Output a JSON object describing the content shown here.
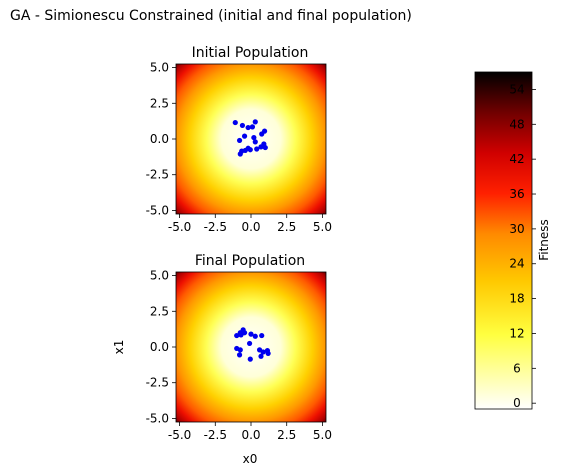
{
  "figure": {
    "title": "GA - Simionescu Constrained (initial and final population)"
  },
  "chart_data": [
    {
      "type": "scatter",
      "title": "Initial Population",
      "xlabel": "",
      "ylabel": "",
      "xlim": [
        -5.25,
        5.25
      ],
      "ylim": [
        -5.25,
        5.25
      ],
      "xticks": [
        "-5.0",
        "-2.5",
        "0.0",
        "2.5",
        "5.0"
      ],
      "yticks": [
        "-5.0",
        "-2.5",
        "0.0",
        "2.5",
        "5.0"
      ],
      "point_color": "#0000ee",
      "background": "fitness heatmap (x0^2 + x1^2)",
      "points": [
        [
          -1.1,
          1.15
        ],
        [
          0.3,
          1.2
        ],
        [
          -0.6,
          0.95
        ],
        [
          -0.2,
          0.8
        ],
        [
          0.1,
          0.85
        ],
        [
          0.95,
          0.55
        ],
        [
          0.75,
          0.35
        ],
        [
          -0.45,
          0.2
        ],
        [
          0.2,
          0.1
        ],
        [
          -0.8,
          -0.1
        ],
        [
          0.3,
          -0.2
        ],
        [
          0.9,
          -0.35
        ],
        [
          1.0,
          -0.6
        ],
        [
          0.7,
          -0.55
        ],
        [
          0.4,
          -0.7
        ],
        [
          -0.2,
          -0.65
        ],
        [
          -0.05,
          -0.75
        ],
        [
          -0.4,
          -0.8
        ],
        [
          -0.65,
          -0.85
        ],
        [
          -0.75,
          -1.05
        ]
      ]
    },
    {
      "type": "scatter",
      "title": "Final Population",
      "xlabel": "x0",
      "ylabel": "x1",
      "xlim": [
        -5.25,
        5.25
      ],
      "ylim": [
        -5.25,
        5.25
      ],
      "xticks": [
        "-5.0",
        "-2.5",
        "0.0",
        "2.5",
        "5.0"
      ],
      "yticks": [
        "-5.0",
        "-2.5",
        "0.0",
        "2.5",
        "5.0"
      ],
      "point_color": "#0000ee",
      "background": "fitness heatmap (x0^2 + x1^2)",
      "points": [
        [
          -0.55,
          1.2
        ],
        [
          -0.75,
          1.0
        ],
        [
          -0.45,
          1.0
        ],
        [
          -1.0,
          0.8
        ],
        [
          -0.7,
          0.85
        ],
        [
          0.0,
          0.9
        ],
        [
          0.3,
          0.75
        ],
        [
          0.75,
          0.8
        ],
        [
          -0.1,
          0.25
        ],
        [
          -1.0,
          -0.1
        ],
        [
          -0.75,
          -0.2
        ],
        [
          0.6,
          -0.2
        ],
        [
          1.15,
          -0.25
        ],
        [
          0.85,
          -0.35
        ],
        [
          1.2,
          -0.45
        ],
        [
          -0.8,
          -0.55
        ],
        [
          0.7,
          -0.65
        ],
        [
          -0.05,
          -0.85
        ]
      ]
    }
  ],
  "colorbar": {
    "label": "Fitness",
    "range": [
      -1,
      57
    ],
    "ticks": [
      "0",
      "6",
      "12",
      "18",
      "24",
      "30",
      "36",
      "42",
      "48",
      "54"
    ],
    "tick_values": [
      0,
      6,
      12,
      18,
      24,
      30,
      36,
      42,
      48,
      54
    ],
    "colormap": "hot_r",
    "colors": [
      "#ffffff",
      "#ffff00",
      "#ff8c00",
      "#ff0000",
      "#b00000",
      "#000000"
    ]
  }
}
